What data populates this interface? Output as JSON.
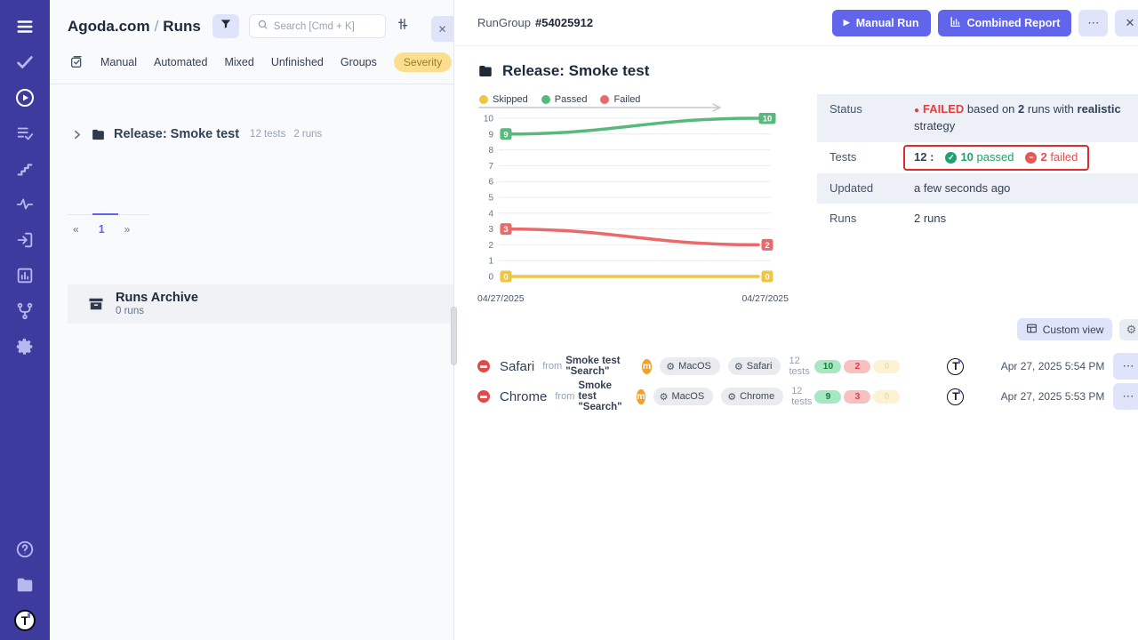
{
  "colors": {
    "sidebar_bg": "#3e3b9f",
    "accent": "#6065ec",
    "accent_light": "#dfe4fb",
    "passed": "#57b97c",
    "failed": "#ea696b",
    "skipped": "#eec643",
    "severity_badge_bg": "#fcdf8e",
    "annotation_red": "#e02b2b"
  },
  "icons": {
    "more": "⋯",
    "close": "✕",
    "prev": "«",
    "next": "»",
    "status_dot": "●",
    "check": "✓",
    "minus": "−",
    "gear": "⚙",
    "play": "▶"
  },
  "left_panel": {
    "project": "Agoda.com",
    "separator": "/",
    "page": "Runs",
    "search": {
      "placeholder": "Search [Cmd + K]"
    },
    "tabs": [
      "Manual",
      "Automated",
      "Mixed",
      "Unfinished",
      "Groups",
      "Severity"
    ],
    "tree_item": {
      "title": "Release: Smoke test",
      "tests": "12 tests",
      "runs": "2 runs"
    },
    "pagination": {
      "current": "1"
    },
    "archive": {
      "title": "Runs Archive",
      "count": "0 runs"
    }
  },
  "header": {
    "group_label": "RunGroup",
    "group_id": "#54025912",
    "manual_run": "Manual Run",
    "combined_report": "Combined Report"
  },
  "detail": {
    "title": "Release: Smoke test",
    "info": {
      "status": {
        "label": "Status",
        "state": "FAILED",
        "mid1": "based on",
        "runs": "2",
        "mid2": "runs with",
        "strategy": "realistic",
        "tail": "strategy"
      },
      "tests": {
        "label": "Tests",
        "total": "12",
        "colon": ":",
        "passed_num": "10",
        "passed_word": "passed",
        "failed_num": "2",
        "failed_word": "failed"
      },
      "updated": {
        "label": "Updated",
        "value": "a few seconds ago"
      },
      "runs": {
        "label": "Runs",
        "value": "2 runs"
      }
    },
    "custom_view": "Custom view"
  },
  "chart_data": {
    "type": "line",
    "x": [
      "04/27/2025",
      "04/27/2025"
    ],
    "series": [
      {
        "name": "Skipped",
        "color": "#eec643",
        "values": [
          0,
          0
        ]
      },
      {
        "name": "Passed",
        "color": "#57b97c",
        "values": [
          9,
          10
        ]
      },
      {
        "name": "Failed",
        "color": "#ea696b",
        "values": [
          3,
          2
        ]
      }
    ],
    "ylim": [
      0,
      10
    ],
    "yticks": [
      0,
      1,
      2,
      3,
      4,
      5,
      6,
      7,
      8,
      9,
      10
    ],
    "grid": true,
    "legend_position": "top",
    "value_badges": true
  },
  "runs": [
    {
      "name": "Safari",
      "from": "from",
      "source": "Smoke test \"Search\"",
      "badge": "m",
      "env": [
        "MacOS",
        "Safari"
      ],
      "tests": "12 tests",
      "passed": "10",
      "failed": "2",
      "skipped": "0",
      "date": "Apr 27, 2025 5:54 PM"
    },
    {
      "name": "Chrome",
      "from": "from",
      "source": "Smoke test \"Search\"",
      "badge": "m",
      "env": [
        "MacOS",
        "Chrome"
      ],
      "tests": "12 tests",
      "passed": "9",
      "failed": "3",
      "skipped": "0",
      "date": "Apr 27, 2025 5:53 PM"
    }
  ]
}
